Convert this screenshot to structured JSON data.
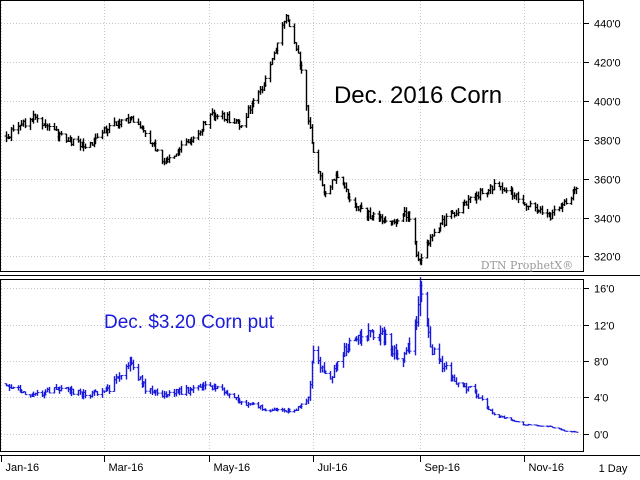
{
  "chart_data": [
    {
      "type": "ohlc",
      "title": "Dec. 2016 Corn",
      "watermark": "DTN ProphetX®",
      "ylim": [
        312,
        452
      ],
      "y_ticks": [
        "320'0",
        "340'0",
        "360'0",
        "380'0",
        "400'0",
        "420'0",
        "440'0"
      ],
      "grid": true,
      "color": "#000000",
      "series": [
        {
          "x": [
            "2016-01-04",
            "2016-01-20",
            "2016-02-05",
            "2016-02-20",
            "2016-03-05",
            "2016-03-20",
            "2016-04-05",
            "2016-04-20",
            "2016-05-05",
            "2016-05-20",
            "2016-06-05",
            "2016-06-15",
            "2016-06-20",
            "2016-06-25",
            "2016-07-01",
            "2016-07-08",
            "2016-07-15",
            "2016-07-25",
            "2016-08-05",
            "2016-08-15",
            "2016-08-25",
            "2016-08-31",
            "2016-09-10",
            "2016-09-20",
            "2016-10-01",
            "2016-10-15",
            "2016-10-25",
            "2016-11-05",
            "2016-11-15",
            "2016-11-25",
            "2016-12-01"
          ],
          "values": [
            382,
            392,
            382,
            376,
            388,
            390,
            368,
            380,
            394,
            388,
            414,
            444,
            432,
            410,
            372,
            352,
            362,
            346,
            340,
            338,
            342,
            318,
            334,
            342,
            350,
            356,
            352,
            346,
            340,
            348,
            354
          ]
        }
      ]
    },
    {
      "type": "ohlc",
      "title": "Dec. $3.20 Corn put",
      "ylim": [
        -2,
        17
      ],
      "y_ticks": [
        "0'0",
        "4'0",
        "8'0",
        "12'0",
        "16'0"
      ],
      "grid": true,
      "color": "#1a1adc",
      "series": [
        {
          "x": [
            "2016-01-04",
            "2016-01-20",
            "2016-02-05",
            "2016-02-20",
            "2016-03-05",
            "2016-03-15",
            "2016-03-25",
            "2016-04-05",
            "2016-04-20",
            "2016-05-05",
            "2016-05-20",
            "2016-06-05",
            "2016-06-20",
            "2016-06-28",
            "2016-07-01",
            "2016-07-10",
            "2016-07-20",
            "2016-07-30",
            "2016-08-10",
            "2016-08-20",
            "2016-08-28",
            "2016-09-01",
            "2016-09-08",
            "2016-09-20",
            "2016-10-01",
            "2016-10-15",
            "2016-11-01",
            "2016-11-15",
            "2016-11-25",
            "2016-12-01"
          ],
          "values": [
            5.5,
            4.2,
            5.0,
            4.2,
            5.0,
            8.0,
            5.0,
            4.3,
            4.8,
            5.2,
            3.5,
            2.6,
            2.5,
            4.0,
            9.0,
            5.5,
            9.5,
            10.5,
            11.0,
            8.0,
            10.0,
            15.8,
            9.0,
            6.0,
            4.8,
            2.0,
            1.0,
            0.8,
            0.3,
            0.2
          ]
        }
      ]
    }
  ],
  "x_axis": {
    "ticks": [
      "Jan-16",
      "Mar-16",
      "May-16",
      "Jul-16",
      "Sep-16",
      "Nov-16"
    ],
    "range": [
      "2016-01-04",
      "2016-12-01"
    ]
  },
  "period_label": "1 Day"
}
